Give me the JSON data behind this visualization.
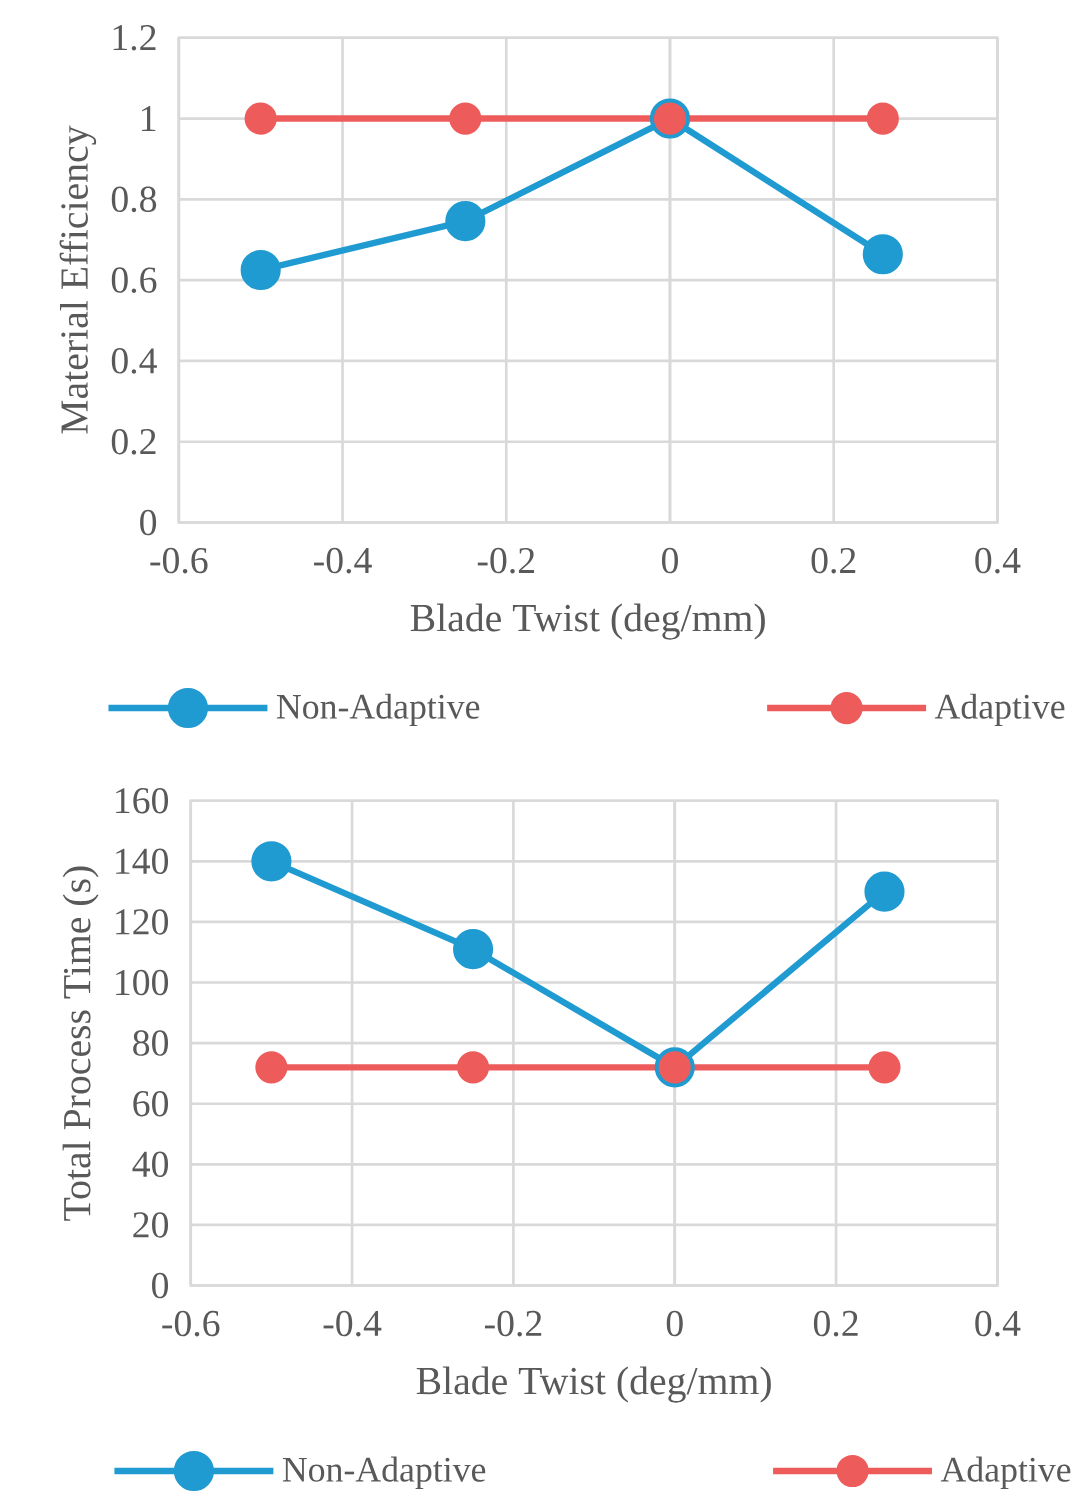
{
  "chart_data": [
    {
      "type": "line",
      "xlabel": "Blade Twist (deg/mm)",
      "ylabel": "Material Efficiency",
      "x": [
        -0.5,
        -0.25,
        0,
        0.26
      ],
      "xlim": [
        -0.6,
        0.4
      ],
      "xticks": [
        -0.6,
        -0.4,
        -0.2,
        0,
        0.2,
        0.4
      ],
      "ylim": [
        0,
        1.2
      ],
      "yticks": [
        0,
        0.2,
        0.4,
        0.6,
        0.8,
        1,
        1.2
      ],
      "grid": true,
      "legend": "bottom",
      "marker": "circle",
      "line_style": "solid",
      "series": [
        {
          "name": "Non-Adaptive",
          "color": "#1f9bd1",
          "values": [
            0.625,
            0.746,
            1.0,
            0.664
          ]
        },
        {
          "name": "Adaptive",
          "color": "#ed5c5a",
          "values": [
            1.0,
            1.0,
            1.0,
            1.0
          ]
        }
      ]
    },
    {
      "type": "line",
      "xlabel": "Blade Twist (deg/mm)",
      "ylabel": "Total Process Time (s)",
      "x": [
        -0.5,
        -0.25,
        0,
        0.26
      ],
      "xlim": [
        -0.6,
        0.4
      ],
      "xticks": [
        -0.6,
        -0.4,
        -0.2,
        0,
        0.2,
        0.4
      ],
      "ylim": [
        0,
        160
      ],
      "yticks": [
        0,
        20,
        40,
        60,
        80,
        100,
        120,
        140,
        160
      ],
      "grid": true,
      "legend": "bottom",
      "marker": "circle",
      "line_style": "solid",
      "series": [
        {
          "name": "Non-Adaptive",
          "color": "#1f9bd1",
          "values": [
            140,
            111,
            72,
            130
          ]
        },
        {
          "name": "Adaptive",
          "color": "#ed5c5a",
          "values": [
            72,
            72,
            72,
            72
          ]
        }
      ]
    }
  ]
}
